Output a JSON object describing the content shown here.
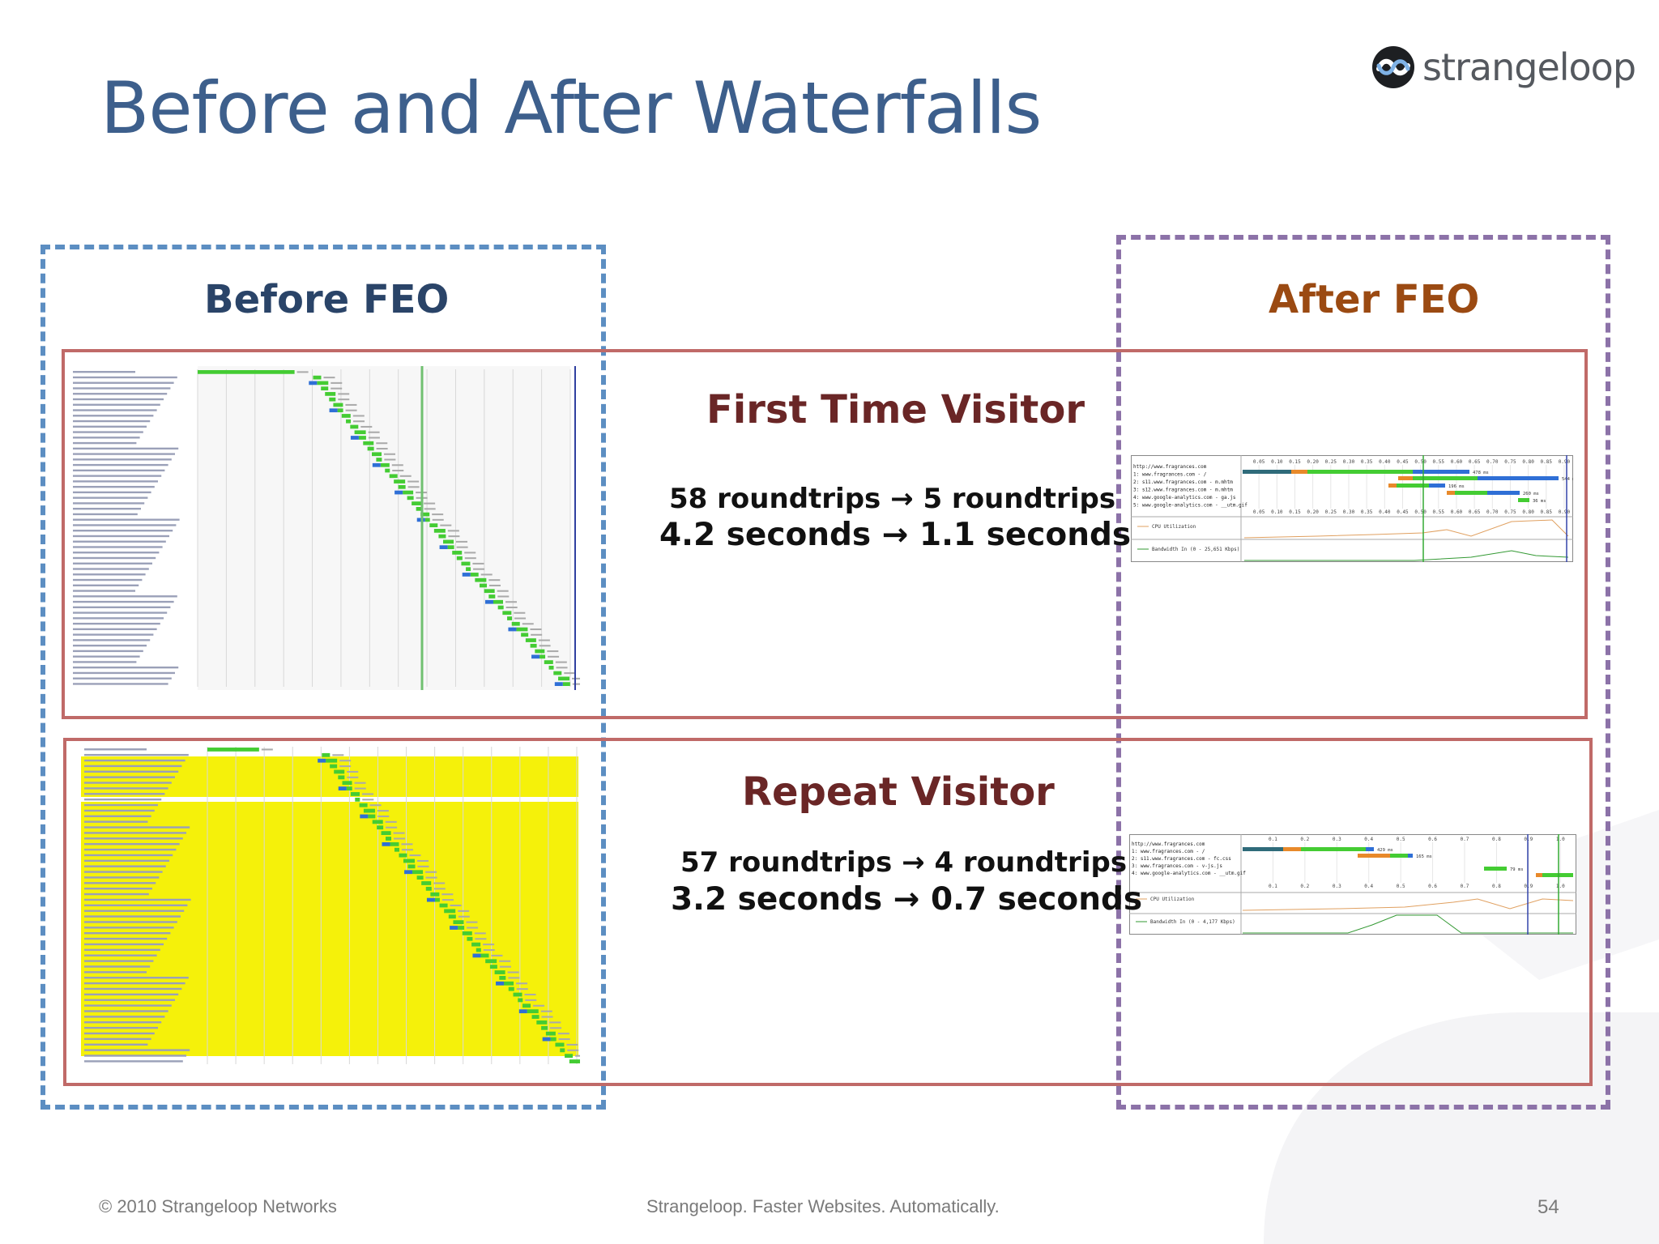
{
  "slide": {
    "title": "Before and After Waterfalls",
    "page_number": "54"
  },
  "logo": {
    "text": "strangeloop",
    "icon": "strangeloop-infinity-icon"
  },
  "columns": {
    "before_label": "Before FEO",
    "after_label": "After FEO"
  },
  "first_visit": {
    "title": "First Time Visitor",
    "roundtrips": "58 roundtrips → 5 roundtrips",
    "seconds": "4.2 seconds → 1.1 seconds"
  },
  "repeat_visit": {
    "title": "Repeat Visitor",
    "roundtrips": "57 roundtrips → 4 roundtrips",
    "seconds": "3.2 seconds → 0.7 seconds"
  },
  "footer": {
    "copyright": "© 2010 Strangeloop Networks",
    "tagline": "Strangeloop. Faster Websites. Automatically."
  },
  "colors": {
    "title": "#3d5f8c",
    "before_border": "#5c8ec2",
    "after_border": "#8c72a8",
    "row_border": "#c06a68",
    "before_label": "#2a4468",
    "after_label": "#9b4a12",
    "visitor_title": "#6a2626",
    "waterfall_green": "#44cc33",
    "waterfall_blue": "#2f6fd6",
    "waterfall_orange": "#e8892a",
    "cached_yellow": "#f5f10a"
  },
  "waterfalls": {
    "before_first": {
      "requests": 58,
      "cached": false
    },
    "before_repeat": {
      "requests": 57,
      "cached": true
    },
    "after_first": {
      "rows": [
        "http://www.fragrances.com",
        "1: www.fragrances.com - /",
        "2: s11.www.fragrances.com - m.mhtm",
        "3: s12.www.fragrances.com - m.mhtm",
        "4: www.google-analytics.com - ga.js",
        "5: www.google-analytics.com - __utm.gif"
      ],
      "timings": [
        "478 ms",
        "544 ms",
        "196 ms",
        "260 ms",
        "36 ms"
      ],
      "ticks": [
        "0.05",
        "0.10",
        "0.15",
        "0.20",
        "0.25",
        "0.30",
        "0.35",
        "0.40",
        "0.45",
        "0.50",
        "0.55",
        "0.60",
        "0.65",
        "0.70",
        "0.75",
        "0.80",
        "0.85",
        "0.90"
      ],
      "cpu_label": "CPU Utilization",
      "bandwidth_label": "Bandwidth In (0 - 25,651 Kbps)"
    },
    "after_repeat": {
      "rows": [
        "http://www.fragrances.com",
        "1: www.fragrances.com - /",
        "2: s11.www.fragrances.com - fc.css",
        "3: www.fragrances.com - v-js.js",
        "4: www.google-analytics.com - __utm.gif"
      ],
      "timings": [
        "429 ms",
        "165 ms",
        "79 ms",
        "135 ms"
      ],
      "ticks": [
        "0.1",
        "0.2",
        "0.3",
        "0.4",
        "0.5",
        "0.6",
        "0.7",
        "0.8",
        "0.9",
        "1.0"
      ],
      "cpu_label": "CPU Utilization",
      "bandwidth_label": "Bandwidth In (0 - 4,177 Kbps)"
    }
  }
}
